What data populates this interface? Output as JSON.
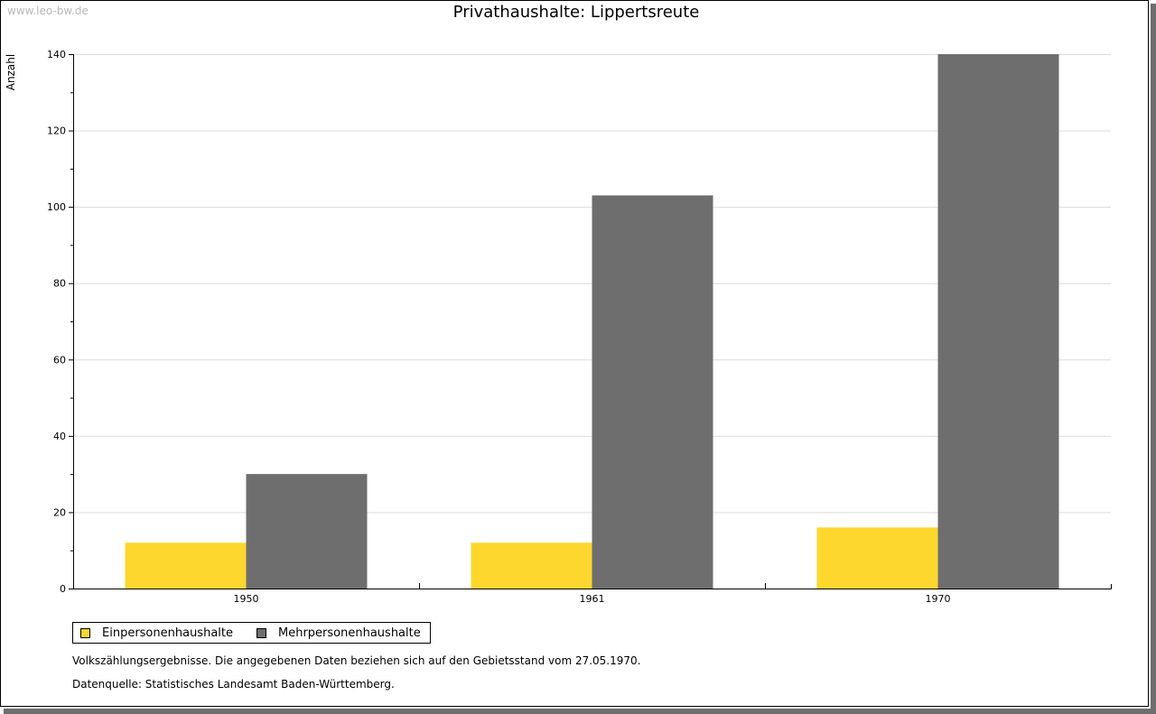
{
  "watermark": "www.leo-bw.de",
  "chart_data": {
    "type": "bar",
    "title": "Privathaushalte: Lippertsreute",
    "xlabel": "",
    "ylabel": "Anzahl",
    "categories": [
      "1950",
      "1961",
      "1970"
    ],
    "series": [
      {
        "name": "Einpersonenhaushalte",
        "color": "#fdd72e",
        "values": [
          12,
          12,
          16
        ]
      },
      {
        "name": "Mehrpersonenhaushalte",
        "color": "#6e6e6e",
        "values": [
          30,
          103,
          140
        ]
      }
    ],
    "ylim": [
      0,
      140
    ],
    "yticks": [
      "0",
      "20",
      "40",
      "60",
      "80",
      "100",
      "120",
      "140"
    ],
    "grid": true,
    "legend": "bottom-left"
  },
  "notes": {
    "line1": "Volkszählungsergebnisse. Die angegebenen Daten beziehen sich auf den Gebietsstand vom 27.05.1970.",
    "line2": "Datenquelle: Statistisches Landesamt Baden-Württemberg."
  }
}
